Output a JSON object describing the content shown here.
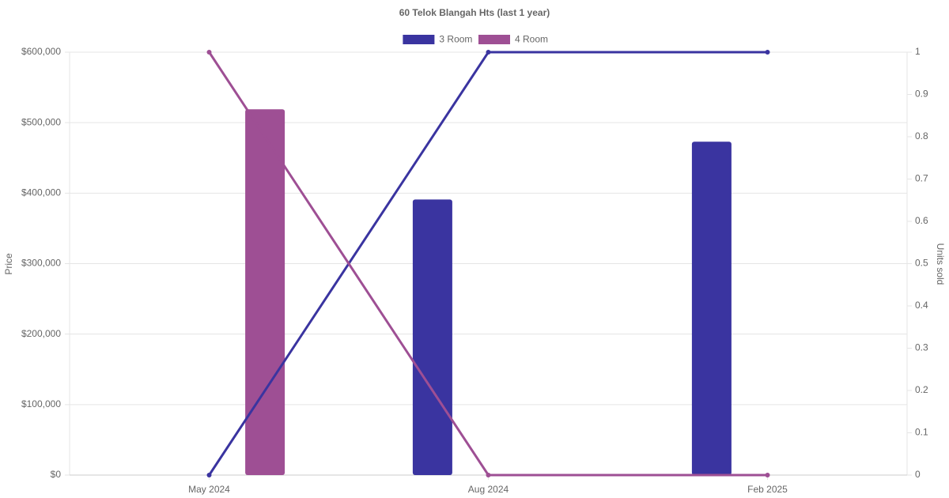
{
  "chart_data": {
    "type": "bar-line",
    "title": "60 Telok Blangah Hts (last 1 year)",
    "y_label": "Price",
    "y2_label": "Units sold",
    "categories": [
      "May 2024",
      "Aug 2024",
      "Feb 2025"
    ],
    "series": [
      {
        "name": "3 Room",
        "color": "#3a34a0",
        "values": [
          null,
          391000,
          473000
        ],
        "units": [
          0,
          1,
          1
        ]
      },
      {
        "name": "4 Room",
        "color": "#9e4f94",
        "values": [
          519000,
          null,
          null
        ],
        "units": [
          1,
          0,
          0
        ]
      }
    ],
    "ylim": [
      0,
      600000
    ],
    "yticks": [
      {
        "value": 0,
        "label": "$0"
      },
      {
        "value": 100000,
        "label": "$100,000"
      },
      {
        "value": 200000,
        "label": "$200,000"
      },
      {
        "value": 300000,
        "label": "$300,000"
      },
      {
        "value": 400000,
        "label": "$400,000"
      },
      {
        "value": 500000,
        "label": "$500,000"
      },
      {
        "value": 600000,
        "label": "$600,000"
      }
    ],
    "y2lim": [
      0,
      1
    ],
    "y2ticks": [
      0,
      0.1,
      0.2,
      0.3,
      0.4,
      0.5,
      0.6,
      0.7,
      0.8,
      0.9,
      1
    ],
    "grid": true,
    "legend": "top"
  }
}
